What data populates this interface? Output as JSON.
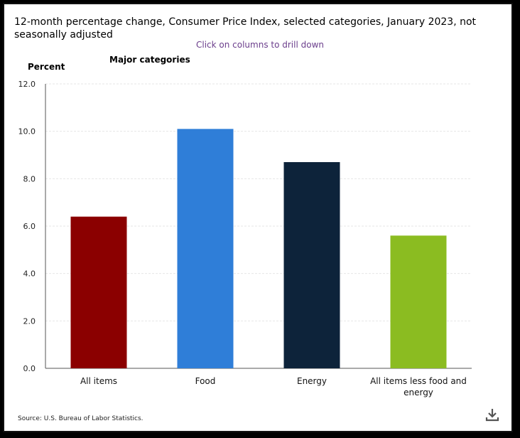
{
  "chart_data": {
    "type": "bar",
    "title": "12-month percentage change, Consumer Price Index, selected categories, January 2023, not seasonally adjusted",
    "subtitle": "Click on columns to drill down",
    "group_label": "Major categories",
    "ylabel": "Percent",
    "xlabel": "",
    "ylim": [
      0,
      12
    ],
    "yticks": [
      "0.0",
      "2.0",
      "4.0",
      "6.0",
      "8.0",
      "10.0",
      "12.0"
    ],
    "ytick_values": [
      0,
      2,
      4,
      6,
      8,
      10,
      12
    ],
    "grid": true,
    "legend": "none",
    "categories": [
      "All items",
      "Food",
      "Energy",
      "All items less food and energy"
    ],
    "category_lines": [
      [
        "All items"
      ],
      [
        "Food"
      ],
      [
        "Energy"
      ],
      [
        "All items less food and",
        "energy"
      ]
    ],
    "values": [
      6.4,
      10.1,
      8.7,
      5.6
    ],
    "colors": [
      "#8b0000",
      "#2f7ed8",
      "#0d233a",
      "#8bbc21"
    ],
    "source": "Source: U.S. Bureau of Labor Statistics."
  },
  "icons": {
    "download": "download-icon"
  }
}
